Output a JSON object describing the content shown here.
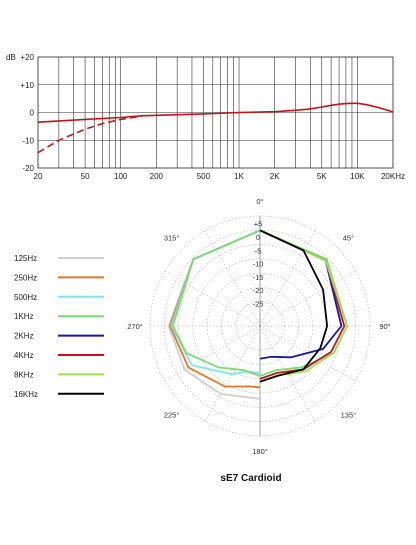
{
  "chart_data": [
    {
      "type": "line",
      "xscale": "log",
      "xlim": [
        20,
        20000
      ],
      "ylim": [
        -20,
        20
      ],
      "ylabel": "dB",
      "y_ticks": [
        {
          "value": 20,
          "label": "+20"
        },
        {
          "value": 10,
          "label": "+10"
        },
        {
          "value": 0,
          "label": "0"
        },
        {
          "value": -10,
          "label": "-10"
        },
        {
          "value": -20,
          "label": "-20"
        }
      ],
      "x_ticks": [
        {
          "value": 20,
          "label": "20"
        },
        {
          "value": 50,
          "label": "50"
        },
        {
          "value": 100,
          "label": "100"
        },
        {
          "value": 200,
          "label": "200"
        },
        {
          "value": 500,
          "label": "500"
        },
        {
          "value": 1000,
          "label": "1K"
        },
        {
          "value": 2000,
          "label": "2K"
        },
        {
          "value": 5000,
          "label": "5K"
        },
        {
          "value": 10000,
          "label": "10K"
        },
        {
          "value": 20000,
          "label": "20KHz"
        }
      ],
      "grid": true,
      "color": "#c0151b",
      "series": [
        {
          "style": "solid",
          "x": [
            20,
            50,
            100,
            150,
            200,
            500,
            1000,
            2000,
            3000,
            4000,
            5000,
            6000,
            7000,
            8000,
            9000,
            10000,
            12000,
            15000,
            20000
          ],
          "y": [
            -3.5,
            -2.5,
            -1.8,
            -1.2,
            -1.0,
            -0.5,
            0,
            0.3,
            0.8,
            1.3,
            2.0,
            2.6,
            3.0,
            3.2,
            3.3,
            3.3,
            2.8,
            1.8,
            0.2
          ]
        },
        {
          "style": "dashed",
          "x": [
            20,
            30,
            50,
            70,
            100,
            150
          ],
          "y": [
            -14.5,
            -10,
            -6,
            -4,
            -2.5,
            -1.3
          ]
        }
      ]
    },
    {
      "type": "polar",
      "title": "sE7  Cardioid",
      "angle_labels": [
        {
          "angle": 0,
          "label": "0°"
        },
        {
          "angle": 45,
          "label": "45°"
        },
        {
          "angle": 90,
          "label": "90°"
        },
        {
          "angle": 135,
          "label": "135°"
        },
        {
          "angle": 180,
          "label": "180°"
        },
        {
          "angle": 225,
          "label": "225°"
        },
        {
          "angle": 270,
          "label": "270°"
        },
        {
          "angle": 315,
          "label": "315°"
        }
      ],
      "radial_range": [
        5,
        -25
      ],
      "radial_ticks": [
        "+5",
        "0",
        "-5",
        "-10",
        "-15",
        "-20",
        "-25"
      ],
      "grid": true,
      "legend_position": "left",
      "series": [
        {
          "name": "125Hz",
          "color": "#cfcfcf",
          "side": "left",
          "points": [
            [
              0,
              0
            ],
            [
              45,
              -0.5
            ],
            [
              90,
              -1.5
            ],
            [
              120,
              -3
            ],
            [
              150,
              -6
            ],
            [
              180,
              -8
            ]
          ]
        },
        {
          "name": "250Hz",
          "color": "#e07a2a",
          "side": "left",
          "points": [
            [
              0,
              0
            ],
            [
              45,
              -0.5
            ],
            [
              90,
              -2
            ],
            [
              120,
              -4.5
            ],
            [
              150,
              -9
            ],
            [
              170,
              -12
            ],
            [
              180,
              -12
            ]
          ]
        },
        {
          "name": "500Hz",
          "color": "#7fe6e6",
          "side": "left",
          "points": [
            [
              0,
              0
            ],
            [
              45,
              -0.5
            ],
            [
              90,
              -2.5
            ],
            [
              120,
              -6
            ],
            [
              150,
              -14
            ],
            [
              165,
              -17
            ],
            [
              180,
              -17
            ]
          ]
        },
        {
          "name": "1KHz",
          "color": "#7dd877",
          "side": "both",
          "points": [
            [
              0,
              0
            ],
            [
              45,
              -0.5
            ],
            [
              90,
              -3
            ],
            [
              110,
              -6
            ],
            [
              135,
              -13
            ],
            [
              160,
              -17
            ],
            [
              180,
              -16
            ]
          ]
        },
        {
          "name": "2KHz",
          "color": "#1616a8",
          "side": "right",
          "points": [
            [
              0,
              0
            ],
            [
              45,
              -1
            ],
            [
              90,
              -5
            ],
            [
              110,
              -10
            ],
            [
              135,
              -18
            ],
            [
              160,
              -22
            ],
            [
              180,
              -22
            ]
          ]
        },
        {
          "name": "4KHz",
          "color": "#c0151b",
          "side": "right",
          "points": [
            [
              0,
              0
            ],
            [
              45,
              -1
            ],
            [
              90,
              -4
            ],
            [
              110,
              -7
            ],
            [
              135,
              -12
            ],
            [
              160,
              -16
            ],
            [
              180,
              -15
            ]
          ]
        },
        {
          "name": "8KHz",
          "color": "#9ee05a",
          "side": "right",
          "points": [
            [
              0,
              0
            ],
            [
              45,
              -1
            ],
            [
              90,
              -3
            ],
            [
              110,
              -6
            ],
            [
              135,
              -11
            ],
            [
              160,
              -15
            ],
            [
              180,
              -14
            ]
          ]
        },
        {
          "name": "16KHz",
          "color": "#000000",
          "side": "right",
          "points": [
            [
              0,
              0
            ],
            [
              30,
              -3
            ],
            [
              60,
              -8
            ],
            [
              90,
              -10
            ],
            [
              110,
              -11
            ],
            [
              135,
              -12
            ],
            [
              160,
              -15
            ],
            [
              180,
              -14
            ]
          ]
        }
      ]
    }
  ]
}
